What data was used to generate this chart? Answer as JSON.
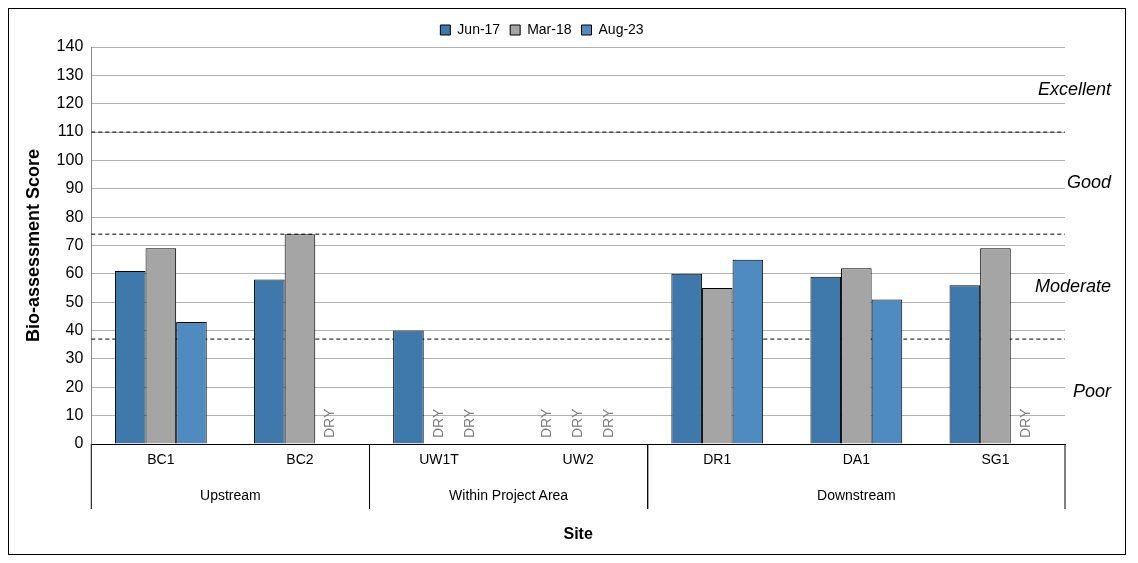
{
  "chart_data": {
    "type": "bar",
    "xlabel": "Site",
    "ylabel": "Bio-assessment Score",
    "categories": [
      "BC1",
      "BC2",
      "UW1T",
      "UW2",
      "DR1",
      "DA1",
      "SG1"
    ],
    "series": [
      {
        "name": "Jun-17",
        "color": "#3f78ab",
        "values": [
          61,
          58,
          40,
          null,
          60,
          59,
          56
        ],
        "value_labels": [
          null,
          null,
          null,
          "DRY",
          null,
          null,
          null
        ]
      },
      {
        "name": "Mar-18",
        "color": "#a5a5a5",
        "values": [
          69,
          74,
          null,
          null,
          55,
          62,
          69
        ],
        "value_labels": [
          null,
          null,
          "DRY",
          "DRY",
          null,
          null,
          null
        ]
      },
      {
        "name": "Aug-23",
        "color": "#4f8bc0",
        "values": [
          43,
          null,
          null,
          null,
          65,
          51,
          null
        ],
        "value_labels": [
          null,
          "DRY",
          "DRY",
          "DRY",
          null,
          null,
          "DRY"
        ]
      }
    ],
    "ylim": [
      0,
      140
    ],
    "yticks": [
      0,
      10,
      20,
      30,
      40,
      50,
      60,
      70,
      80,
      90,
      100,
      110,
      120,
      130,
      140
    ],
    "grid": "y",
    "legend": "top",
    "ref_lines": [
      {
        "axis": "y",
        "value": 110,
        "line_style": "dashed"
      },
      {
        "axis": "y",
        "value": 74,
        "line_style": "dashed"
      },
      {
        "axis": "y",
        "value": 37,
        "line_style": "dashed"
      }
    ],
    "annotations": [
      "Excellent",
      "Good",
      "Moderate",
      "Poor",
      "Upstream",
      "Within Project Area",
      "Downstream"
    ]
  }
}
